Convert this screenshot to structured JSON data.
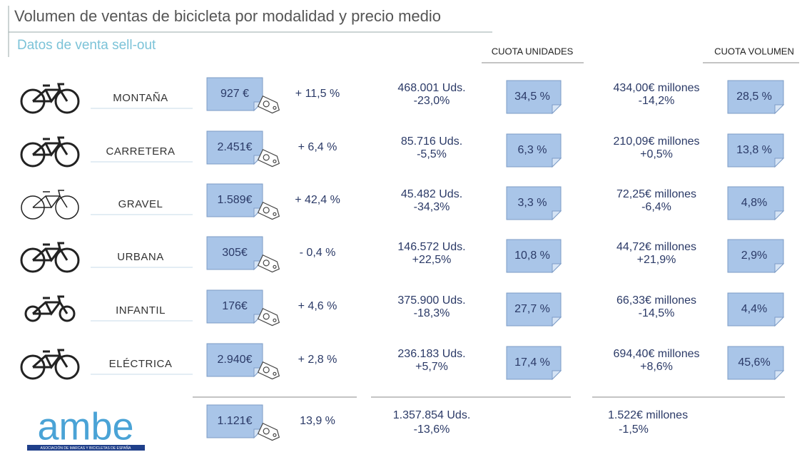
{
  "header": {
    "title": "Volumen de ventas de bicicleta por modalidad y precio medio",
    "subtitle": "Datos de venta sell-out"
  },
  "columns": {
    "unit_share": "CUOTA UNIDADES",
    "volume_share": "CUOTA VOLUMEN"
  },
  "table": {
    "rows": [
      [
        "MONTAÑA",
        "927 €",
        "+ 11,5 %",
        "468.001 Uds.",
        "-23,0%",
        "34,5 %",
        "434,00€ millones",
        "-14,2%",
        "28,5 %"
      ],
      [
        "CARRETERA",
        "2.451€",
        "+ 6,4 %",
        "85.716 Uds.",
        "-5,5%",
        "6,3 %",
        "210,09€  millones",
        "+0,5%",
        "13,8 %"
      ],
      [
        "GRAVEL",
        "1.589€",
        "+ 42,4 %",
        "45.482 Uds.",
        "-34,3%",
        "3,3 %",
        "72,25€ millones",
        "-6,4%",
        "4,8%"
      ],
      [
        "URBANA",
        "305€",
        "- 0,4 %",
        "146.572 Uds.",
        "+22,5%",
        "10,8 %",
        "44,72€ millones",
        "+21,9%",
        "2,9%"
      ],
      [
        "INFANTIL",
        "176€",
        "+ 4,6 %",
        "375.900 Uds.",
        "-18,3%",
        "27,7 %",
        "66,33€ millones",
        "-14,5%",
        "4,4%"
      ],
      [
        "ELÉCTRICA",
        "2.940€",
        "+ 2,8 %",
        "236.183 Uds.",
        "+5,7%",
        "17,4 %",
        "694,40€ millones",
        "+8,6%",
        "45,6%"
      ]
    ],
    "total": [
      "1.121€",
      "13,9 %",
      "1.357.854 Uds.",
      "-13,6%",
      "1.522€ millones",
      "-1,5%"
    ]
  },
  "logo": {
    "name": "ambe",
    "tagline": "ASOCIACIÓN DE MARCAS Y BICICLETAS DE ESPAÑA"
  }
}
